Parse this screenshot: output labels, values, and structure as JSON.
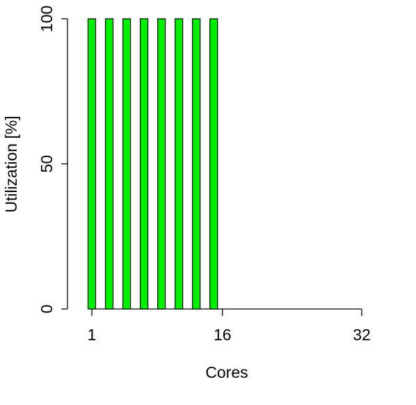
{
  "chart_data": {
    "type": "bar",
    "x_label": "Cores",
    "y_label": "Utilization [%]",
    "categories": [
      "1",
      null,
      null,
      null,
      null,
      null,
      null,
      null,
      null,
      null,
      null,
      null,
      null,
      null,
      null,
      "16",
      null,
      null,
      null,
      null,
      null,
      null,
      null,
      null,
      null,
      null,
      null,
      null,
      null,
      null,
      null,
      "32"
    ],
    "values": [
      100,
      0,
      100,
      0,
      100,
      0,
      100,
      0,
      100,
      0,
      100,
      0,
      100,
      0,
      100,
      0,
      0,
      0,
      0,
      0,
      0,
      0,
      0,
      0,
      0,
      0,
      0,
      0,
      0,
      0,
      0,
      0
    ],
    "color": "#00ee00",
    "ylim": [
      0,
      100
    ],
    "yticks": [
      0,
      50,
      100
    ]
  }
}
